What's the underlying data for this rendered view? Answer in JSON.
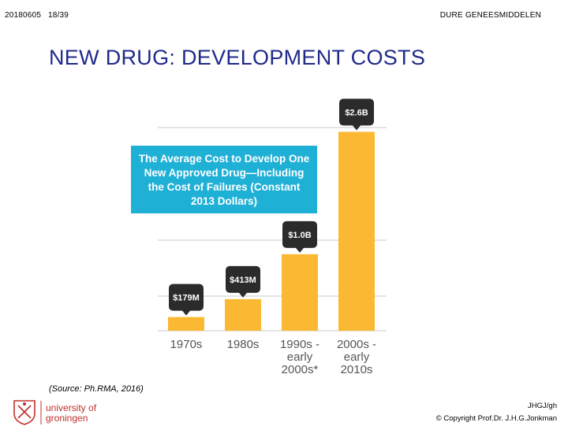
{
  "header": {
    "date": "20180605",
    "page": "18/39",
    "section": "DURE GENEESMIDDELEN"
  },
  "title": "NEW DRUG: DEVELOPMENT COSTS",
  "callout_lines": [
    "The Average Cost to Develop One",
    "New Approved Drug—Including",
    "the Cost of Failures (Constant",
    "2013 Dollars)"
  ],
  "colors": {
    "bar": "#fbb833",
    "label_bubble": "#2b2b2b",
    "callout": "#1fb0d6",
    "grid": "#c8c8c8",
    "axis_text": "#555555",
    "title": "#1f2a8a"
  },
  "chart_data": {
    "type": "bar",
    "title": "The Average Cost to Develop One New Approved Drug—Including the Cost of Failures (Constant 2013 Dollars)",
    "categories": [
      [
        "1970s"
      ],
      [
        "1980s"
      ],
      [
        "1990s -",
        "early",
        "2000s*"
      ],
      [
        "2000s -",
        "early",
        "2010s"
      ]
    ],
    "values": [
      0.179,
      0.413,
      1.0,
      2.6
    ],
    "unit": "billion USD (2013)",
    "data_labels": [
      "$179M",
      "$413M",
      "$1.0B",
      "$2.6B"
    ],
    "ylim": [
      0,
      2.8
    ],
    "grid": true,
    "xlabel": "",
    "ylabel": ""
  },
  "source": "(Source: Ph.RMA, 2016)",
  "logo": {
    "line1": "university of",
    "line2": "groningen"
  },
  "footer": {
    "author": "JHGJ/gh",
    "copyright": "© Copyright Prof.Dr. J.H.G.Jonkman"
  }
}
